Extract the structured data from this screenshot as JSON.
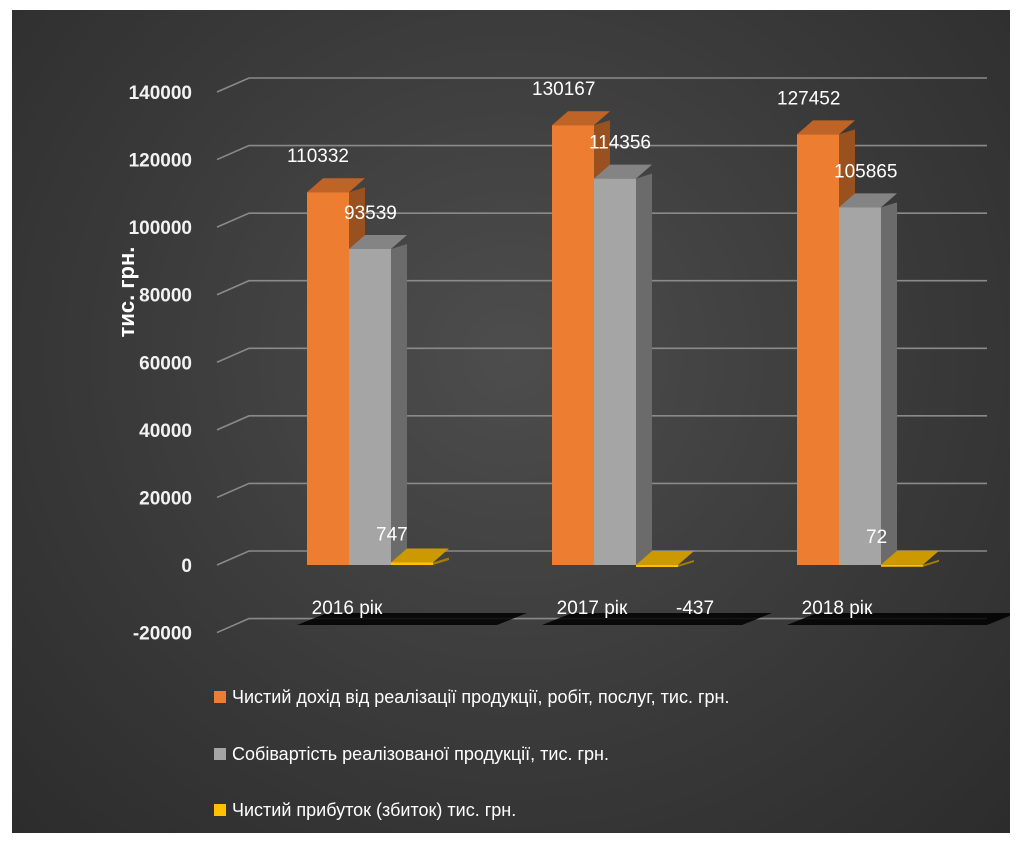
{
  "chart_data": {
    "type": "bar",
    "title": "",
    "xlabel": "",
    "ylabel": "тис. грн.",
    "ylim": [
      -20000,
      140000
    ],
    "yticks": [
      140000,
      120000,
      100000,
      80000,
      60000,
      40000,
      20000,
      0,
      -20000
    ],
    "categories": [
      "2016 рік",
      "2017 рік",
      "2018 рік"
    ],
    "series": [
      {
        "name": "Чистий дохід від реалізації продукції, робіт, послуг, тис. грн.",
        "values": [
          110332,
          130167,
          127452
        ],
        "color": "#ed7d31"
      },
      {
        "name": "Собівартість реалізованої продукції, тис. грн.",
        "values": [
          93539,
          114356,
          105865
        ],
        "color": "#a5a5a5"
      },
      {
        "name": "Чистий прибуток (збиток) тис. грн.",
        "values": [
          747,
          -437,
          72
        ],
        "color": "#ffc000"
      }
    ],
    "data_labels": [
      [
        "110332",
        "130167",
        "127452"
      ],
      [
        "93539",
        "114356",
        "105865"
      ],
      [
        "747",
        "-437",
        "72"
      ]
    ],
    "grid": true,
    "legend_position": "bottom",
    "style": "3d-column"
  }
}
